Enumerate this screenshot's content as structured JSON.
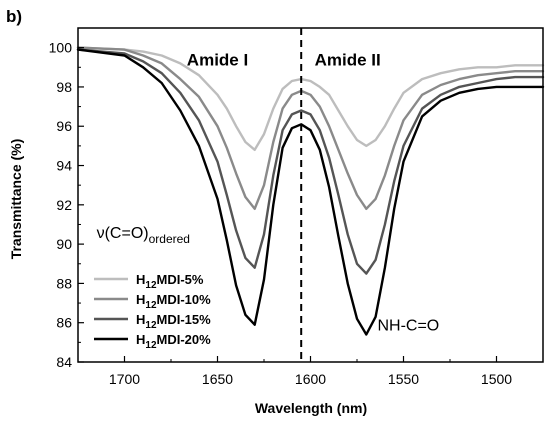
{
  "chart_data": {
    "type": "line",
    "panel_label": "b)",
    "xlabel": "Wavelength (nm)",
    "ylabel": "Transmittance (%)",
    "xlim": [
      1725,
      1475
    ],
    "ylim": [
      84,
      101
    ],
    "x_reversed": true,
    "xticks": [
      1700,
      1650,
      1600,
      1550,
      1500
    ],
    "yticks": [
      84,
      86,
      88,
      90,
      92,
      94,
      96,
      98,
      100
    ],
    "grid": false,
    "legend_position": "bottom-left",
    "divider_x": 1605,
    "region_labels": [
      {
        "text": "Amide I",
        "x": 1650,
        "y": 99.9
      },
      {
        "text": "Amide II",
        "x": 1580,
        "y": 99.9
      }
    ],
    "annotations": [
      {
        "main": "ν(C=O)",
        "sub": "ordered",
        "x": 1715,
        "y": 90.3
      },
      {
        "main": "NH-C=O",
        "sub": "",
        "x": 1564,
        "y": 85.6
      }
    ],
    "series": [
      {
        "name": "H12MDI-5%",
        "name_prefix": "H",
        "name_sub": "12",
        "name_suffix": "MDI-5%",
        "color": "#bdbdbd",
        "x": [
          1725,
          1700,
          1690,
          1680,
          1670,
          1660,
          1650,
          1645,
          1640,
          1635,
          1630,
          1625,
          1620,
          1615,
          1610,
          1605,
          1600,
          1595,
          1590,
          1585,
          1580,
          1575,
          1570,
          1565,
          1560,
          1555,
          1550,
          1540,
          1530,
          1520,
          1510,
          1500,
          1490,
          1475
        ],
        "y": [
          100.0,
          99.9,
          99.8,
          99.6,
          99.2,
          98.6,
          97.6,
          96.9,
          96.0,
          95.2,
          94.8,
          95.6,
          96.9,
          97.9,
          98.3,
          98.4,
          98.3,
          98.0,
          97.6,
          96.8,
          96.0,
          95.3,
          95.0,
          95.3,
          96.0,
          96.9,
          97.7,
          98.4,
          98.7,
          98.9,
          99.0,
          99.0,
          99.1,
          99.1
        ]
      },
      {
        "name": "H12MDI-10%",
        "name_prefix": "H",
        "name_sub": "12",
        "name_suffix": "MDI-10%",
        "color": "#8a8a8a",
        "x": [
          1725,
          1700,
          1690,
          1680,
          1670,
          1660,
          1650,
          1645,
          1640,
          1635,
          1630,
          1625,
          1620,
          1615,
          1610,
          1605,
          1600,
          1595,
          1590,
          1585,
          1580,
          1575,
          1570,
          1565,
          1560,
          1555,
          1550,
          1540,
          1530,
          1520,
          1510,
          1500,
          1490,
          1475
        ],
        "y": [
          100.0,
          99.9,
          99.6,
          99.2,
          98.4,
          97.5,
          96.0,
          94.9,
          93.6,
          92.4,
          91.8,
          93.0,
          95.2,
          96.9,
          97.6,
          97.8,
          97.6,
          97.0,
          96.0,
          94.8,
          93.6,
          92.5,
          91.8,
          92.3,
          93.5,
          95.0,
          96.3,
          97.6,
          98.1,
          98.4,
          98.6,
          98.7,
          98.8,
          98.8
        ]
      },
      {
        "name": "H12MDI-15%",
        "name_prefix": "H",
        "name_sub": "12",
        "name_suffix": "MDI-15%",
        "color": "#555555",
        "x": [
          1725,
          1700,
          1690,
          1680,
          1670,
          1660,
          1650,
          1645,
          1640,
          1635,
          1630,
          1625,
          1620,
          1615,
          1610,
          1605,
          1600,
          1595,
          1590,
          1585,
          1580,
          1575,
          1570,
          1565,
          1560,
          1555,
          1550,
          1540,
          1530,
          1520,
          1510,
          1500,
          1490,
          1475
        ],
        "y": [
          99.9,
          99.7,
          99.3,
          98.7,
          97.7,
          96.3,
          94.2,
          92.5,
          90.7,
          89.3,
          88.8,
          90.5,
          93.5,
          95.8,
          96.6,
          96.8,
          96.6,
          95.8,
          94.4,
          92.5,
          90.5,
          89.0,
          88.5,
          89.2,
          91.0,
          93.2,
          95.0,
          96.9,
          97.6,
          98.0,
          98.2,
          98.4,
          98.5,
          98.5
        ]
      },
      {
        "name": "H12MDI-20%",
        "name_prefix": "H",
        "name_sub": "12",
        "name_suffix": "MDI-20%",
        "color": "#000000",
        "x": [
          1725,
          1700,
          1690,
          1680,
          1670,
          1660,
          1650,
          1645,
          1640,
          1635,
          1630,
          1625,
          1620,
          1615,
          1610,
          1605,
          1600,
          1595,
          1590,
          1585,
          1580,
          1575,
          1570,
          1565,
          1560,
          1555,
          1550,
          1540,
          1530,
          1520,
          1510,
          1500,
          1490,
          1475
        ],
        "y": [
          99.9,
          99.6,
          99.0,
          98.2,
          96.8,
          95.0,
          92.3,
          90.2,
          87.9,
          86.4,
          85.9,
          88.2,
          92.0,
          94.9,
          95.9,
          96.1,
          95.8,
          94.8,
          92.9,
          90.4,
          88.0,
          86.2,
          85.4,
          86.3,
          88.8,
          91.8,
          94.2,
          96.5,
          97.3,
          97.7,
          97.9,
          98.0,
          98.0,
          98.0
        ]
      }
    ]
  }
}
